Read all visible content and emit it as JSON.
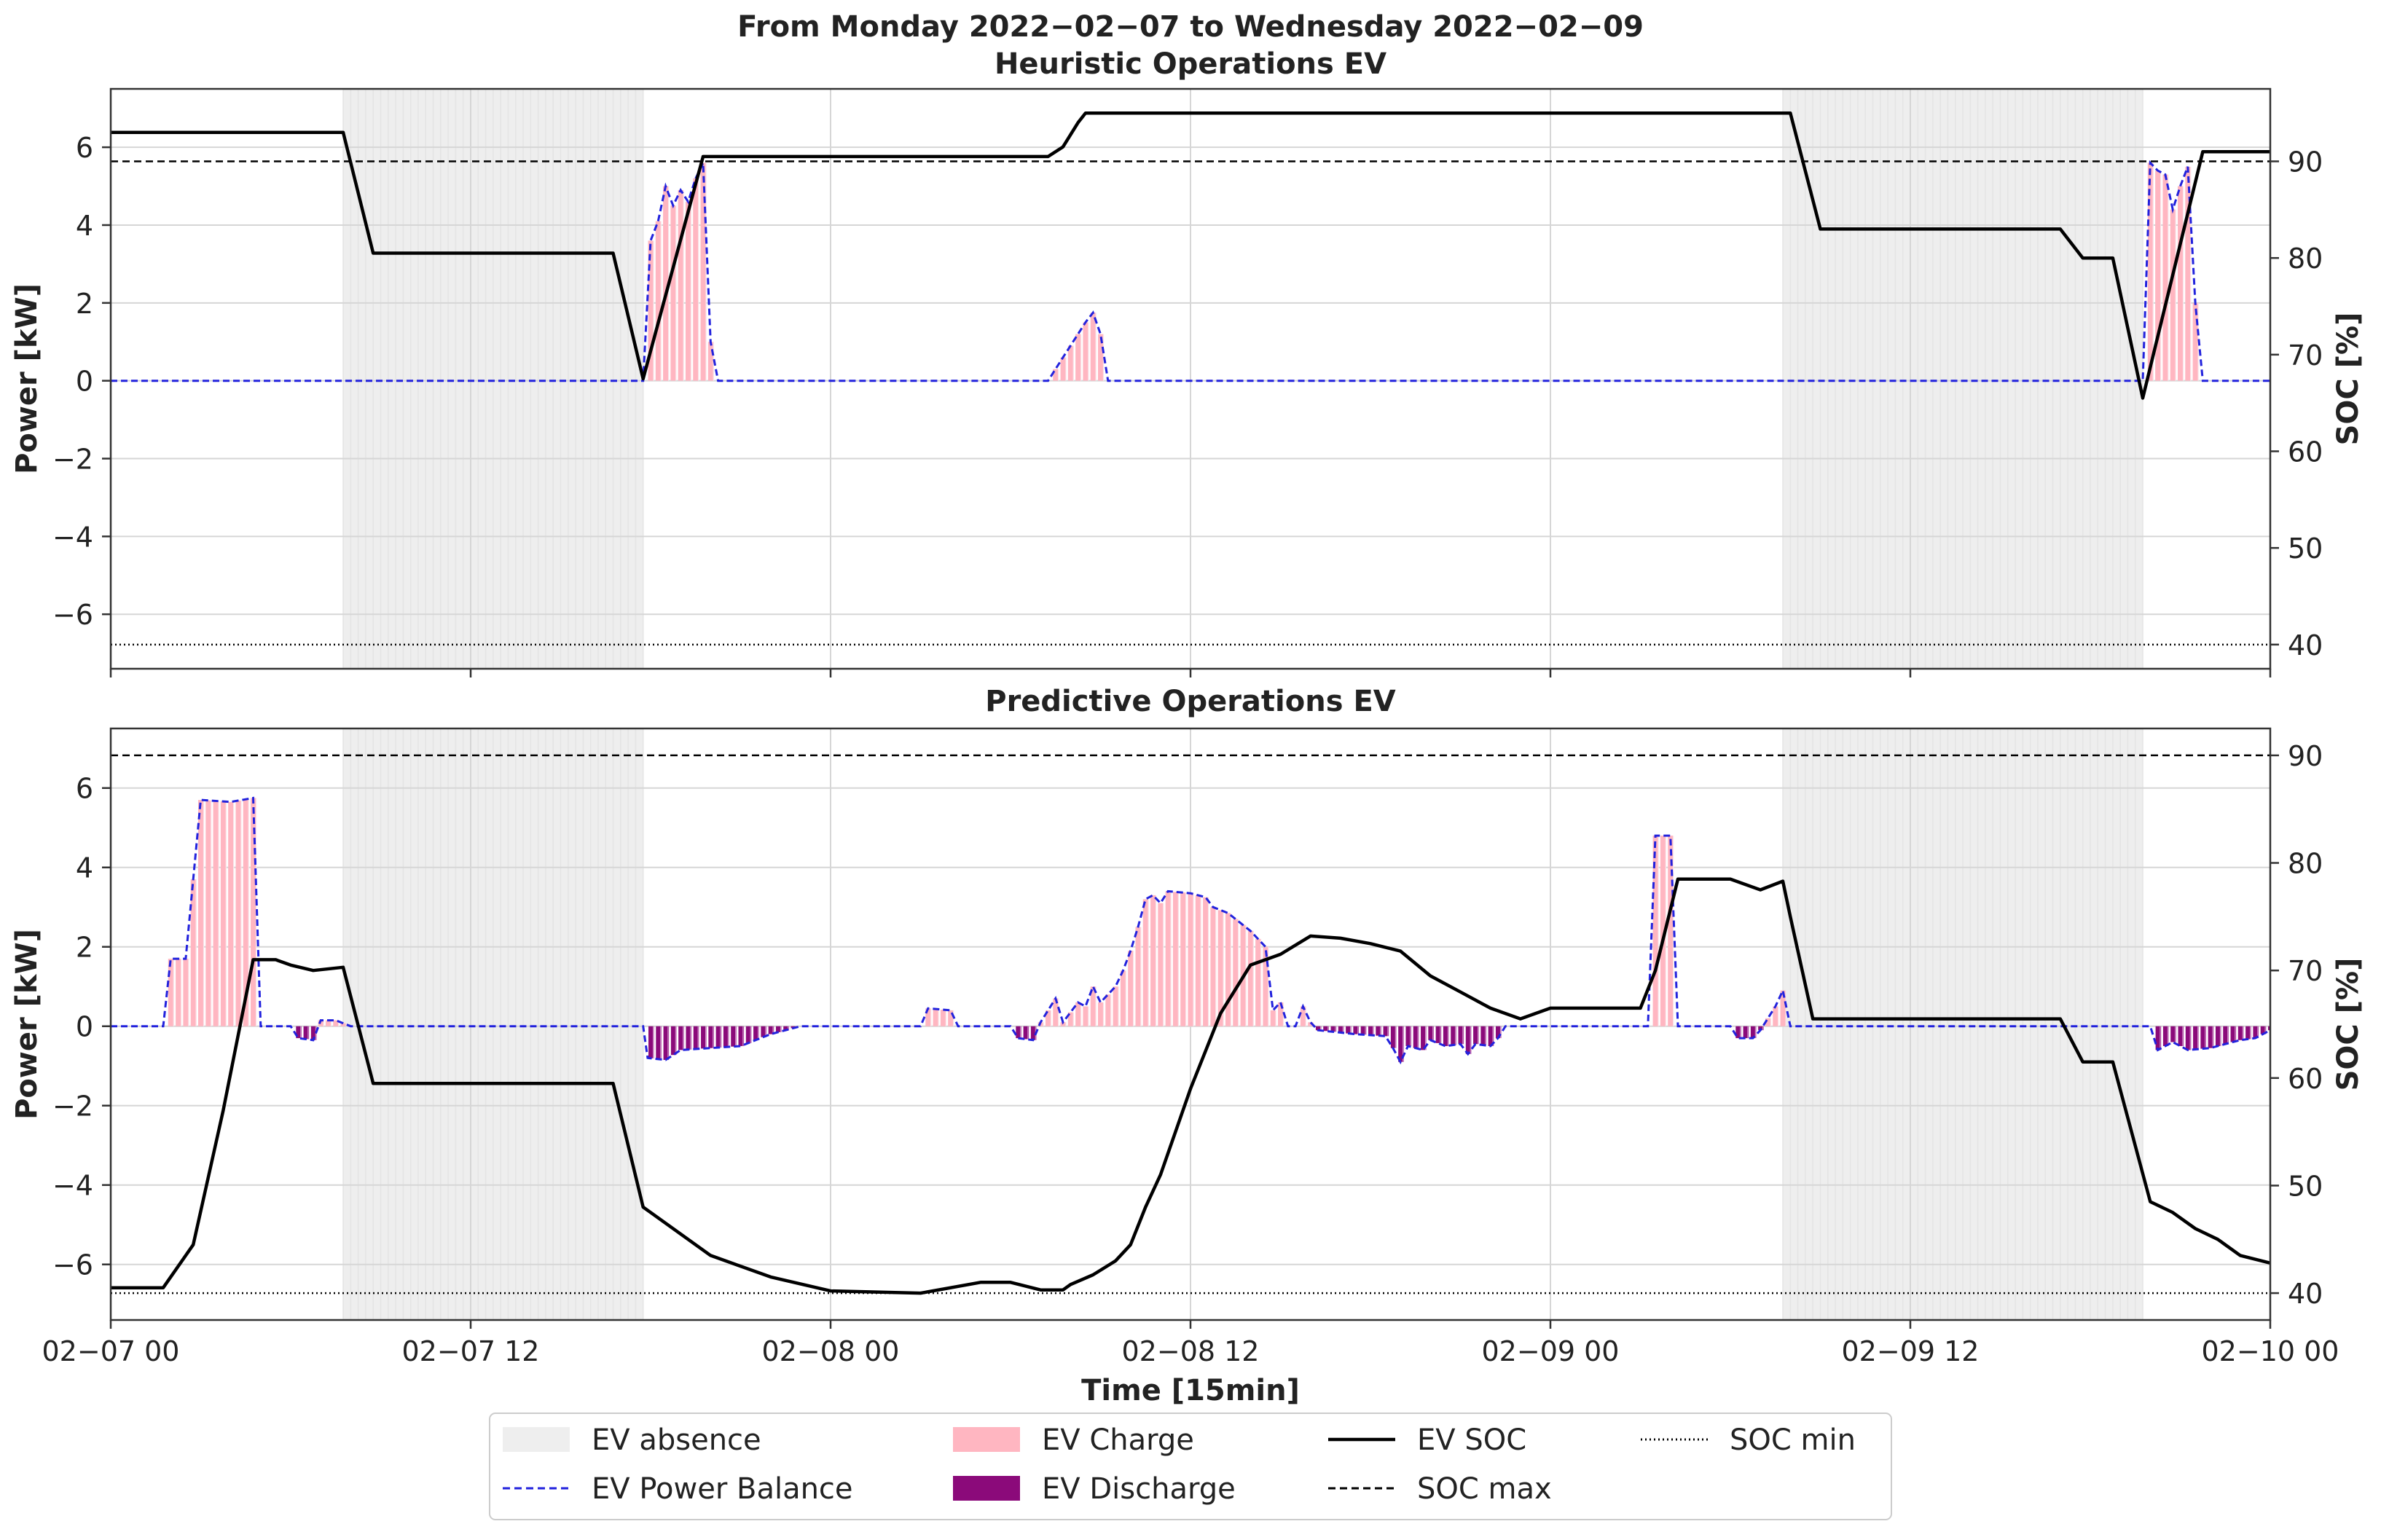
{
  "chart_data": {
    "title_lines": [
      "From Monday 2022−02−07 to Wednesday 2022−02−09",
      "Heuristic Operations EV"
    ],
    "xlabel": "Time [15min]",
    "xlim": [
      0,
      72
    ],
    "x_unit": "hours since 02−07 00",
    "x_tick_labels": [
      "02−07 00",
      "02−07 12",
      "02−08 00",
      "02−08 12",
      "02−09 00",
      "02−09 12",
      "02−10 00"
    ],
    "legend": {
      "placement": "bottom-center",
      "entries": [
        {
          "label": "EV absence",
          "style": "patch",
          "color": "#eeeeee"
        },
        {
          "label": "EV Power Balance",
          "style": "dashed-line",
          "color": "#2222dd"
        },
        {
          "label": "EV Charge",
          "style": "patch",
          "color": "#ffb6c1"
        },
        {
          "label": "EV Discharge",
          "style": "patch",
          "color": "#8b0a7a"
        },
        {
          "label": "EV SOC",
          "style": "solid-line",
          "color": "#000000"
        },
        {
          "label": "SOC max",
          "style": "dashed-line",
          "color": "#000000"
        },
        {
          "label": "SOC min",
          "style": "dotted-line",
          "color": "#000000"
        }
      ]
    },
    "colors": {
      "absence": "#eeeeee",
      "charge": "#ffb6c1",
      "discharge": "#8b0a7a",
      "power": "#2222dd",
      "soc": "#000000",
      "grid": "#d6d6d6"
    },
    "absence_intervals": [
      [
        7.75,
        17.75
      ],
      [
        55.75,
        67.75
      ]
    ],
    "panels": [
      {
        "title": "",
        "ylabel_left": "Power [kW]",
        "ylabel_right": "SOC [%]",
        "ylim_power": [
          -7.4,
          7.5
        ],
        "ylim_soc": [
          37.5,
          97.5
        ],
        "yticks_power": [
          -6,
          -4,
          -2,
          0,
          2,
          4,
          6
        ],
        "yticks_soc": [
          40,
          50,
          60,
          70,
          80,
          90
        ],
        "soc_max": 90,
        "soc_min": 40,
        "power": [
          [
            0,
            0
          ],
          [
            17.75,
            0
          ],
          [
            18.0,
            3.6
          ],
          [
            18.25,
            4.1
          ],
          [
            18.5,
            5.0
          ],
          [
            18.75,
            4.5
          ],
          [
            19.0,
            4.9
          ],
          [
            19.25,
            4.6
          ],
          [
            19.5,
            5.2
          ],
          [
            19.75,
            5.6
          ],
          [
            20.0,
            1.0
          ],
          [
            20.25,
            0
          ],
          [
            31.25,
            0
          ],
          [
            31.75,
            0.6
          ],
          [
            32.25,
            1.2
          ],
          [
            32.5,
            1.5
          ],
          [
            32.75,
            1.75
          ],
          [
            33.0,
            1.2
          ],
          [
            33.25,
            0
          ],
          [
            67.75,
            0
          ],
          [
            68.0,
            5.6
          ],
          [
            68.25,
            5.4
          ],
          [
            68.5,
            5.3
          ],
          [
            68.75,
            4.4
          ],
          [
            69.0,
            5.0
          ],
          [
            69.25,
            5.5
          ],
          [
            69.5,
            2.0
          ],
          [
            69.75,
            0
          ],
          [
            72,
            0
          ]
        ],
        "soc": [
          [
            0,
            93
          ],
          [
            7.75,
            93
          ],
          [
            8.75,
            80.5
          ],
          [
            16.75,
            80.5
          ],
          [
            17.75,
            67.5
          ],
          [
            19.75,
            90.5
          ],
          [
            31.25,
            90.5
          ],
          [
            31.75,
            91.5
          ],
          [
            32.25,
            94
          ],
          [
            32.5,
            95
          ],
          [
            56,
            95
          ],
          [
            57,
            83
          ],
          [
            65,
            83
          ],
          [
            65.75,
            80
          ],
          [
            66.75,
            80
          ],
          [
            67.75,
            65.5
          ],
          [
            69.75,
            91
          ],
          [
            72,
            91
          ]
        ]
      },
      {
        "title": "Predictive Operations EV",
        "ylabel_left": "Power [kW]",
        "ylabel_right": "SOC [%]",
        "ylim_power": [
          -7.4,
          7.5
        ],
        "ylim_soc": [
          37.5,
          92.5
        ],
        "yticks_power": [
          -6,
          -4,
          -2,
          0,
          2,
          4,
          6
        ],
        "yticks_soc": [
          40,
          50,
          60,
          70,
          80,
          90
        ],
        "soc_max": 90,
        "soc_min": 40,
        "power": [
          [
            0,
            0
          ],
          [
            1.75,
            0
          ],
          [
            2.0,
            1.7
          ],
          [
            2.5,
            1.7
          ],
          [
            3.0,
            5.7
          ],
          [
            4.0,
            5.65
          ],
          [
            4.75,
            5.75
          ],
          [
            5.0,
            0
          ],
          [
            6.0,
            0
          ],
          [
            6.25,
            -0.3
          ],
          [
            6.75,
            -0.35
          ],
          [
            7.0,
            0.15
          ],
          [
            7.5,
            0.15
          ],
          [
            8.0,
            0
          ],
          [
            17.75,
            0
          ],
          [
            17.9,
            -0.8
          ],
          [
            18.5,
            -0.85
          ],
          [
            19.0,
            -0.6
          ],
          [
            20.0,
            -0.55
          ],
          [
            21.0,
            -0.5
          ],
          [
            22.0,
            -0.2
          ],
          [
            22.5,
            -0.1
          ],
          [
            23.0,
            0
          ],
          [
            27.0,
            0
          ],
          [
            27.25,
            0.45
          ],
          [
            28.0,
            0.4
          ],
          [
            28.25,
            0
          ],
          [
            30.0,
            0
          ],
          [
            30.25,
            -0.3
          ],
          [
            30.75,
            -0.35
          ],
          [
            31.0,
            0.1
          ],
          [
            31.5,
            0.7
          ],
          [
            31.75,
            0.1
          ],
          [
            32.25,
            0.6
          ],
          [
            32.5,
            0.5
          ],
          [
            32.75,
            1.0
          ],
          [
            33.0,
            0.6
          ],
          [
            33.5,
            1.0
          ],
          [
            33.75,
            1.4
          ],
          [
            34.0,
            1.9
          ],
          [
            34.25,
            2.5
          ],
          [
            34.5,
            3.2
          ],
          [
            34.75,
            3.3
          ],
          [
            35.0,
            3.1
          ],
          [
            35.25,
            3.4
          ],
          [
            36.0,
            3.35
          ],
          [
            36.5,
            3.25
          ],
          [
            36.75,
            3.0
          ],
          [
            37.25,
            2.85
          ],
          [
            37.5,
            2.7
          ],
          [
            38.0,
            2.4
          ],
          [
            38.5,
            2.0
          ],
          [
            38.75,
            0.4
          ],
          [
            39.0,
            0.6
          ],
          [
            39.25,
            0
          ],
          [
            39.5,
            0
          ],
          [
            39.75,
            0.5
          ],
          [
            40.0,
            0.1
          ],
          [
            40.25,
            -0.1
          ],
          [
            41.5,
            -0.2
          ],
          [
            42.5,
            -0.25
          ],
          [
            42.75,
            -0.55
          ],
          [
            43.0,
            -0.9
          ],
          [
            43.25,
            -0.5
          ],
          [
            43.75,
            -0.6
          ],
          [
            44.0,
            -0.35
          ],
          [
            44.5,
            -0.5
          ],
          [
            45.0,
            -0.45
          ],
          [
            45.25,
            -0.7
          ],
          [
            45.5,
            -0.45
          ],
          [
            46.0,
            -0.5
          ],
          [
            46.25,
            -0.3
          ],
          [
            46.5,
            0
          ],
          [
            51.25,
            0
          ],
          [
            51.5,
            4.8
          ],
          [
            51.75,
            4.8
          ],
          [
            52.0,
            4.8
          ],
          [
            52.25,
            0
          ],
          [
            54.0,
            0
          ],
          [
            54.25,
            -0.3
          ],
          [
            54.75,
            -0.3
          ],
          [
            55.0,
            -0.1
          ],
          [
            55.5,
            0.5
          ],
          [
            55.75,
            0.9
          ],
          [
            56.0,
            0
          ],
          [
            68.0,
            0
          ],
          [
            68.25,
            -0.6
          ],
          [
            68.75,
            -0.4
          ],
          [
            69.25,
            -0.6
          ],
          [
            70.0,
            -0.55
          ],
          [
            70.5,
            -0.45
          ],
          [
            71.0,
            -0.35
          ],
          [
            71.5,
            -0.3
          ],
          [
            72,
            -0.1
          ]
        ],
        "soc": [
          [
            0,
            40.5
          ],
          [
            1.75,
            40.5
          ],
          [
            2.75,
            44.5
          ],
          [
            3.75,
            57
          ],
          [
            4.75,
            71
          ],
          [
            5.5,
            71
          ],
          [
            6.0,
            70.5
          ],
          [
            6.75,
            70
          ],
          [
            7.75,
            70.3
          ],
          [
            8.75,
            59.5
          ],
          [
            16.75,
            59.5
          ],
          [
            17.75,
            48
          ],
          [
            19.0,
            45.5
          ],
          [
            20.0,
            43.5
          ],
          [
            22.0,
            41.5
          ],
          [
            24.0,
            40.2
          ],
          [
            27.0,
            40.0
          ],
          [
            29.0,
            41.0
          ],
          [
            30.0,
            41.0
          ],
          [
            31.0,
            40.3
          ],
          [
            31.75,
            40.3
          ],
          [
            32.0,
            40.8
          ],
          [
            32.75,
            41.7
          ],
          [
            33.5,
            43.0
          ],
          [
            34.0,
            44.5
          ],
          [
            34.5,
            48
          ],
          [
            35.0,
            51
          ],
          [
            36.0,
            59
          ],
          [
            37.0,
            66
          ],
          [
            38.0,
            70.5
          ],
          [
            39.0,
            71.5
          ],
          [
            40.0,
            73.2
          ],
          [
            41.0,
            73.0
          ],
          [
            42.0,
            72.5
          ],
          [
            43.0,
            71.8
          ],
          [
            44.0,
            69.5
          ],
          [
            45.0,
            68
          ],
          [
            46.0,
            66.5
          ],
          [
            47.0,
            65.5
          ],
          [
            48.0,
            66.5
          ],
          [
            51.0,
            66.5
          ],
          [
            51.5,
            70
          ],
          [
            52.25,
            78.5
          ],
          [
            53.0,
            78.5
          ],
          [
            54.0,
            78.5
          ],
          [
            55.0,
            77.5
          ],
          [
            55.75,
            78.3
          ],
          [
            56.0,
            75
          ],
          [
            56.75,
            65.5
          ],
          [
            65.0,
            65.5
          ],
          [
            65.75,
            61.5
          ],
          [
            66.75,
            61.5
          ],
          [
            68.0,
            48.5
          ],
          [
            68.75,
            47.5
          ],
          [
            69.5,
            46
          ],
          [
            70.25,
            45
          ],
          [
            71.0,
            43.5
          ],
          [
            72,
            42.8
          ]
        ]
      }
    ]
  }
}
